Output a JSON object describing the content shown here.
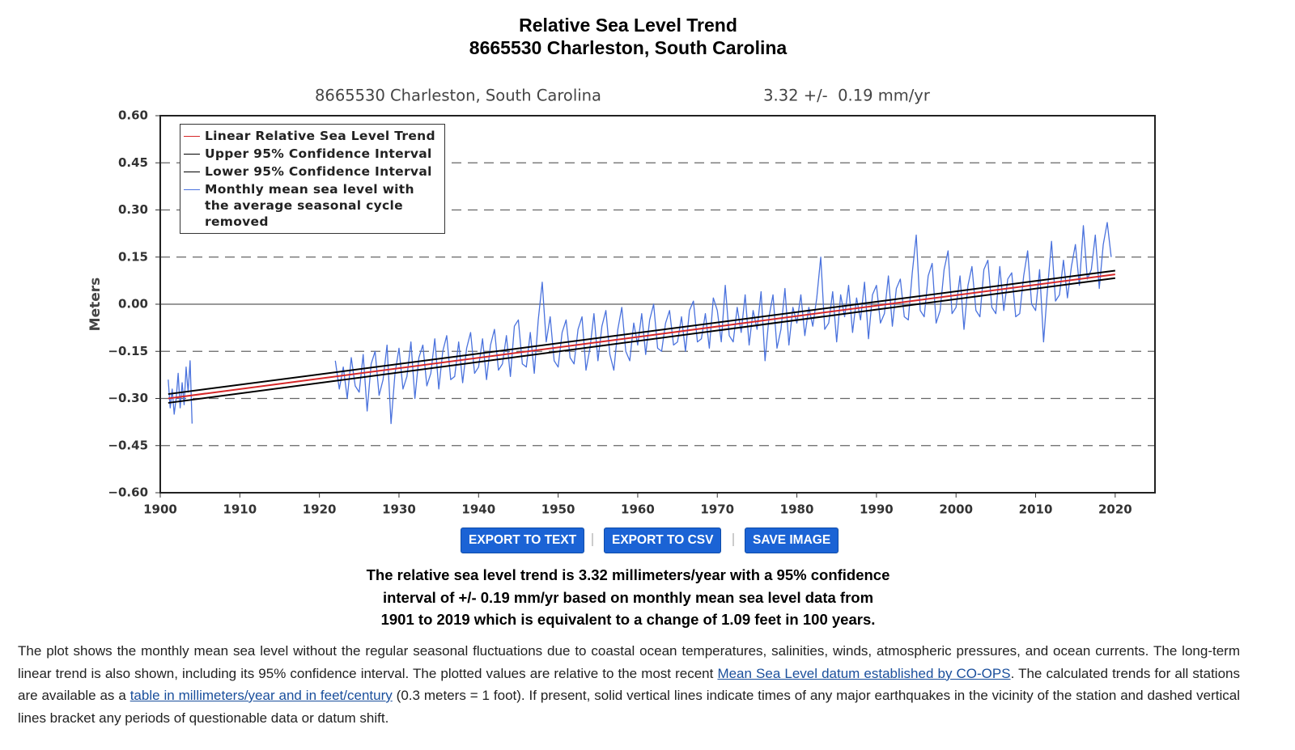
{
  "header": {
    "title": "Relative Sea Level Trend",
    "subtitle": "8665530 Charleston, South Carolina"
  },
  "chart_data": {
    "type": "line",
    "title": "8665530 Charleston, South Carolina",
    "subtitle": "3.32 +/-  0.19 mm/yr",
    "y_label": "Meters",
    "xlim": [
      1900,
      2025
    ],
    "ylim": [
      -0.6,
      0.6
    ],
    "xticks": [
      1900,
      1910,
      1920,
      1930,
      1940,
      1950,
      1960,
      1970,
      1980,
      1990,
      2000,
      2010,
      2020
    ],
    "yticks": [
      {
        "value": 0.6,
        "label": "0.60"
      },
      {
        "value": 0.45,
        "label": "0.45"
      },
      {
        "value": 0.3,
        "label": "0.30"
      },
      {
        "value": 0.15,
        "label": "0.15"
      },
      {
        "value": 0,
        "label": "0.00"
      },
      {
        "value": -0.15,
        "label": "−0.15"
      },
      {
        "value": -0.3,
        "label": "−0.30"
      },
      {
        "value": -0.45,
        "label": "−0.45"
      },
      {
        "value": -0.6,
        "label": "−0.60"
      }
    ],
    "grid": true,
    "legend": "upper-left",
    "series": [
      {
        "name": "Linear Relative Sea Level Trend",
        "color": "#d62728",
        "x": [
          1901,
          2020
        ],
        "values": [
          -0.3,
          0.095
        ]
      },
      {
        "name": "Upper 95% Confidence Interval",
        "color": "#000000",
        "x": [
          1901,
          2020
        ],
        "values": [
          -0.286,
          0.107
        ]
      },
      {
        "name": "Lower 95% Confidence Interval",
        "color": "#000000",
        "x": [
          1901,
          2020
        ],
        "values": [
          -0.314,
          0.083
        ]
      },
      {
        "name": "Monthly mean sea level with the average seasonal cycle removed",
        "color": "#4a72dd",
        "x": [
          1901,
          1901.25,
          1901.5,
          1901.75,
          1902,
          1902.25,
          1902.5,
          1902.75,
          1903,
          1903.25,
          1903.5,
          1903.75,
          1904,
          1912,
          1922,
          1922.5,
          1923,
          1923.5,
          1924,
          1924.5,
          1925,
          1925.5,
          1926,
          1926.5,
          1927,
          1927.5,
          1928,
          1928.5,
          1929,
          1929.5,
          1930,
          1930.5,
          1931,
          1931.5,
          1932,
          1932.5,
          1933,
          1933.5,
          1934,
          1934.5,
          1935,
          1935.5,
          1936,
          1936.5,
          1937,
          1937.5,
          1938,
          1938.5,
          1939,
          1939.5,
          1940,
          1940.5,
          1941,
          1941.5,
          1942,
          1942.5,
          1943,
          1943.5,
          1944,
          1944.5,
          1945,
          1945.5,
          1946,
          1946.5,
          1947,
          1947.5,
          1948,
          1948.5,
          1949,
          1949.5,
          1950,
          1950.5,
          1951,
          1951.5,
          1952,
          1952.5,
          1953,
          1953.5,
          1954,
          1954.5,
          1955,
          1955.5,
          1956,
          1956.5,
          1957,
          1957.5,
          1958,
          1958.5,
          1959,
          1959.5,
          1960,
          1960.5,
          1961,
          1961.5,
          1962,
          1962.5,
          1963,
          1963.5,
          1964,
          1964.5,
          1965,
          1965.5,
          1966,
          1966.5,
          1967,
          1967.5,
          1968,
          1968.5,
          1969,
          1969.5,
          1970,
          1970.5,
          1971,
          1971.5,
          1972,
          1972.5,
          1973,
          1973.5,
          1974,
          1974.5,
          1975,
          1975.5,
          1976,
          1976.5,
          1977,
          1977.5,
          1978,
          1978.5,
          1979,
          1979.5,
          1980,
          1980.5,
          1981,
          1981.5,
          1982,
          1982.5,
          1983,
          1983.5,
          1984,
          1984.5,
          1985,
          1985.5,
          1986,
          1986.5,
          1987,
          1987.5,
          1988,
          1988.5,
          1989,
          1989.5,
          1990,
          1990.5,
          1991,
          1991.5,
          1992,
          1992.5,
          1993,
          1993.5,
          1994,
          1994.5,
          1995,
          1995.5,
          1996,
          1996.5,
          1997,
          1997.5,
          1998,
          1998.5,
          1999,
          1999.5,
          2000,
          2000.5,
          2001,
          2001.5,
          2002,
          2002.5,
          2003,
          2003.5,
          2004,
          2004.5,
          2005,
          2005.5,
          2006,
          2006.5,
          2007,
          2007.5,
          2008,
          2008.5,
          2009,
          2009.5,
          2010,
          2010.5,
          2011,
          2011.5,
          2012,
          2012.5,
          2013,
          2013.5,
          2014,
          2014.5,
          2015,
          2015.5,
          2016,
          2016.5,
          2017,
          2017.5,
          2018,
          2018.5,
          2019,
          2019.5
        ],
        "values": [
          -0.24,
          -0.33,
          -0.27,
          -0.35,
          -0.3,
          -0.22,
          -0.33,
          -0.25,
          -0.32,
          -0.2,
          -0.28,
          -0.18,
          -0.38,
          null,
          -0.18,
          -0.27,
          -0.2,
          -0.3,
          -0.17,
          -0.26,
          -0.28,
          -0.16,
          -0.34,
          -0.19,
          -0.15,
          -0.29,
          -0.24,
          -0.13,
          -0.38,
          -0.22,
          -0.14,
          -0.27,
          -0.23,
          -0.12,
          -0.3,
          -0.17,
          -0.13,
          -0.26,
          -0.22,
          -0.11,
          -0.27,
          -0.15,
          -0.1,
          -0.24,
          -0.23,
          -0.12,
          -0.25,
          -0.14,
          -0.09,
          -0.22,
          -0.2,
          -0.11,
          -0.24,
          -0.13,
          -0.08,
          -0.21,
          -0.19,
          -0.1,
          -0.23,
          -0.07,
          -0.05,
          -0.19,
          -0.2,
          -0.09,
          -0.22,
          -0.05,
          0.07,
          -0.12,
          -0.04,
          -0.18,
          -0.2,
          -0.09,
          -0.05,
          -0.17,
          -0.19,
          -0.08,
          -0.04,
          -0.21,
          -0.14,
          -0.03,
          -0.18,
          -0.07,
          -0.02,
          -0.16,
          -0.21,
          -0.08,
          -0.01,
          -0.15,
          -0.18,
          -0.06,
          -0.13,
          -0.03,
          -0.16,
          -0.05,
          0.0,
          -0.14,
          -0.15,
          -0.06,
          -0.02,
          -0.13,
          -0.12,
          -0.04,
          -0.15,
          -0.02,
          0.01,
          -0.12,
          -0.11,
          -0.03,
          -0.14,
          0.02,
          -0.02,
          -0.12,
          0.06,
          -0.1,
          -0.12,
          -0.01,
          -0.09,
          0.03,
          -0.13,
          -0.02,
          -0.08,
          0.04,
          -0.18,
          -0.04,
          0.03,
          -0.14,
          -0.08,
          0.05,
          -0.13,
          -0.01,
          -0.06,
          0.03,
          -0.1,
          -0.01,
          -0.07,
          0.02,
          0.15,
          -0.08,
          -0.06,
          0.04,
          -0.12,
          0.03,
          -0.04,
          0.06,
          -0.09,
          0.02,
          -0.05,
          0.07,
          -0.11,
          0.03,
          0.06,
          -0.06,
          -0.03,
          0.09,
          -0.07,
          0.05,
          0.08,
          -0.04,
          -0.05,
          0.1,
          0.22,
          -0.02,
          -0.04,
          0.09,
          0.13,
          -0.06,
          -0.02,
          0.11,
          0.17,
          -0.03,
          -0.01,
          0.09,
          -0.08,
          0.06,
          0.12,
          -0.02,
          -0.04,
          0.11,
          0.14,
          -0.01,
          -0.03,
          0.12,
          -0.02,
          0.08,
          0.1,
          -0.04,
          -0.03,
          0.09,
          0.17,
          0.0,
          -0.02,
          0.11,
          -0.12,
          0.05,
          0.2,
          0.01,
          0.03,
          0.14,
          0.02,
          0.12,
          0.19,
          0.06,
          0.25,
          0.08,
          0.11,
          0.22,
          0.05,
          0.19,
          0.26,
          0.15
        ]
      }
    ]
  },
  "buttons": [
    "EXPORT TO TEXT",
    "EXPORT TO CSV",
    "SAVE IMAGE"
  ],
  "summary": [
    "The relative sea level trend is 3.32 millimeters/year with a 95% confidence",
    "interval of +/- 0.19 mm/yr based on monthly mean sea level data from",
    "1901 to 2019 which is equivalent to a change of 1.09 feet in 100 years."
  ],
  "description": [
    "The plot shows the monthly mean sea level without the regular seasonal fluctuations due to coastal ocean temperatures, salinities, winds, atmospheric pressures, and ocean currents. The long-term linear trend is also shown, including its 95% confidence interval. The plotted values are relative to the most recent ",
    "Mean Sea Level datum established by CO-OPS",
    ". The calculated trends for all stations are available as a ",
    "table in millimeters/year and in feet/century",
    " (0.3 meters = 1 foot). If present, solid vertical lines indicate times of any major earthquakes in the vicinity of the station and dashed vertical lines bracket any periods of questionable data or datum shift."
  ]
}
